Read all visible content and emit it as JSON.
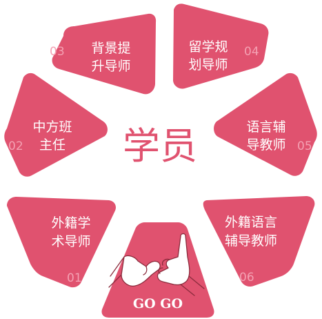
{
  "colors": {
    "petal": "#e0526f",
    "center_text": "#e0526f",
    "label_text": "#ffffff",
    "number_text": "#f4a1b3",
    "hand_outline": "#8a2b3c",
    "hand_fill": "#ffffff"
  },
  "center": {
    "label": "学员"
  },
  "petals": [
    {
      "id": "01",
      "line1": "外籍学",
      "line2": "术导师"
    },
    {
      "id": "02",
      "line1": "中方班",
      "line2": "主任"
    },
    {
      "id": "03",
      "line1": "背景提",
      "line2": "升导师"
    },
    {
      "id": "04",
      "line1": "留学规",
      "line2": "划导师"
    },
    {
      "id": "05",
      "line1": "语言辅",
      "line2": "导教师"
    },
    {
      "id": "06",
      "line1": "外籍语言",
      "line2": "辅导教师"
    }
  ],
  "bottom_card": {
    "label": "GO GO",
    "icon": "pinky-promise-hands-icon"
  }
}
